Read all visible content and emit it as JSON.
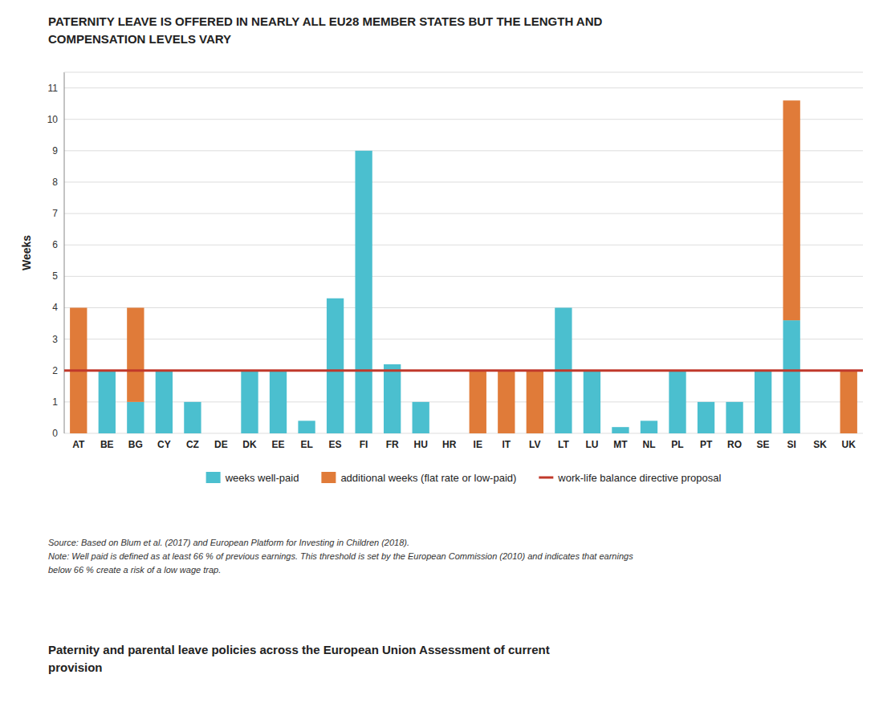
{
  "chart_data": {
    "type": "bar",
    "stacked": true,
    "title": "PATERNITY LEAVE IS OFFERED IN NEARLY ALL EU28 MEMBER STATES BUT THE LENGTH AND\nCOMPENSATION LEVELS VARY",
    "ylabel": "Weeks",
    "categories": [
      "AT",
      "BE",
      "BG",
      "CY",
      "CZ",
      "DE",
      "DK",
      "EE",
      "EL",
      "ES",
      "FI",
      "FR",
      "HU",
      "HR",
      "IE",
      "IT",
      "LV",
      "LT",
      "LU",
      "MT",
      "NL",
      "PL",
      "PT",
      "RO",
      "SE",
      "SI",
      "SK",
      "UK"
    ],
    "series": [
      {
        "name": "weeks well-paid",
        "color": "#4bbfcf",
        "values": [
          0,
          2,
          1,
          2,
          1,
          0,
          2,
          2,
          0.4,
          4.3,
          9,
          2.2,
          1,
          0,
          0,
          0,
          0,
          4,
          2,
          0.2,
          0.4,
          2,
          1,
          1,
          2,
          3.6,
          0,
          0
        ]
      },
      {
        "name": "additional weeks (flat rate or low-paid)",
        "color": "#e07b39",
        "values": [
          4,
          0,
          3,
          0,
          0,
          0,
          0,
          0,
          0,
          0,
          0,
          0,
          0,
          0,
          2,
          2,
          2,
          0,
          0,
          0,
          0,
          0,
          0,
          0,
          0,
          7,
          0,
          2
        ]
      }
    ],
    "reference_line": {
      "name": "work-life balance directive proposal",
      "value": 2,
      "color": "#c0392b"
    },
    "ylim": [
      0,
      11.5
    ],
    "yticks": [
      0,
      1,
      2,
      3,
      4,
      5,
      6,
      7,
      8,
      9,
      10,
      11
    ],
    "grid": true,
    "legend": "bottom",
    "annotations": [
      "Source: Based on Blum et al. (2017) and European Platform for Investing in Children (2018).\nNote: Well paid is defined as at least 66 % of previous earnings. This threshold is set by the European Commission (2010) and indicates that earnings\nbelow 66 % create a risk of a low wage trap.",
      "Paternity and parental leave policies across the European Union Assessment of current\nprovision"
    ]
  }
}
